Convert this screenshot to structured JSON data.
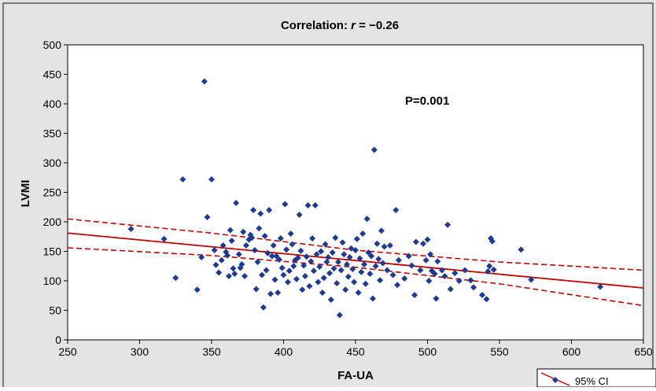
{
  "chart_data": {
    "type": "scatter",
    "title_prefix": "Correlation: ",
    "title_r": "r",
    "title_suffix": " = −0.26",
    "annotation": "P=0.001",
    "xlabel": "FA-UA",
    "ylabel": "LVMI",
    "xlim": [
      250,
      650
    ],
    "ylim": [
      0,
      500
    ],
    "x_ticks": [
      250,
      300,
      350,
      400,
      450,
      500,
      550,
      600,
      650
    ],
    "y_ticks": [
      0,
      50,
      100,
      150,
      200,
      250,
      300,
      350,
      400,
      450,
      500
    ],
    "legend": {
      "label": "95% CI",
      "position": "bottom-right"
    },
    "colors": {
      "points": "#1f3a93",
      "fit_line": "#c00000",
      "background": "#e4e4e4",
      "plot_area": "#ffffff"
    },
    "fit_line": {
      "x": [
        250,
        650
      ],
      "y": [
        181,
        88
      ]
    },
    "ci_upper": {
      "x": [
        250,
        350,
        450,
        550,
        650
      ],
      "y": [
        205,
        181,
        152,
        132,
        118
      ]
    },
    "ci_lower": {
      "x": [
        250,
        350,
        450,
        550,
        650
      ],
      "y": [
        156,
        143,
        123,
        95,
        58
      ]
    },
    "points": [
      {
        "x": 294,
        "y": 188
      },
      {
        "x": 317,
        "y": 171
      },
      {
        "x": 325,
        "y": 105
      },
      {
        "x": 330,
        "y": 272
      },
      {
        "x": 340,
        "y": 85
      },
      {
        "x": 343,
        "y": 140
      },
      {
        "x": 345,
        "y": 438
      },
      {
        "x": 347,
        "y": 208
      },
      {
        "x": 350,
        "y": 272
      },
      {
        "x": 352,
        "y": 152
      },
      {
        "x": 353,
        "y": 127
      },
      {
        "x": 355,
        "y": 114
      },
      {
        "x": 357,
        "y": 135
      },
      {
        "x": 358,
        "y": 160
      },
      {
        "x": 360,
        "y": 149
      },
      {
        "x": 361,
        "y": 143
      },
      {
        "x": 362,
        "y": 108
      },
      {
        "x": 363,
        "y": 186
      },
      {
        "x": 364,
        "y": 168
      },
      {
        "x": 365,
        "y": 121
      },
      {
        "x": 366,
        "y": 112
      },
      {
        "x": 367,
        "y": 232
      },
      {
        "x": 369,
        "y": 145
      },
      {
        "x": 370,
        "y": 122
      },
      {
        "x": 371,
        "y": 128
      },
      {
        "x": 372,
        "y": 183
      },
      {
        "x": 373,
        "y": 108
      },
      {
        "x": 374,
        "y": 160
      },
      {
        "x": 376,
        "y": 170
      },
      {
        "x": 377,
        "y": 178
      },
      {
        "x": 378,
        "y": 173
      },
      {
        "x": 379,
        "y": 220
      },
      {
        "x": 380,
        "y": 152
      },
      {
        "x": 381,
        "y": 86
      },
      {
        "x": 382,
        "y": 132
      },
      {
        "x": 383,
        "y": 189
      },
      {
        "x": 384,
        "y": 214
      },
      {
        "x": 385,
        "y": 110
      },
      {
        "x": 386,
        "y": 55
      },
      {
        "x": 387,
        "y": 176
      },
      {
        "x": 388,
        "y": 118
      },
      {
        "x": 389,
        "y": 147
      },
      {
        "x": 390,
        "y": 220
      },
      {
        "x": 391,
        "y": 78
      },
      {
        "x": 392,
        "y": 142
      },
      {
        "x": 393,
        "y": 160
      },
      {
        "x": 394,
        "y": 102
      },
      {
        "x": 395,
        "y": 142
      },
      {
        "x": 396,
        "y": 80
      },
      {
        "x": 397,
        "y": 136
      },
      {
        "x": 398,
        "y": 172
      },
      {
        "x": 399,
        "y": 122
      },
      {
        "x": 400,
        "y": 110
      },
      {
        "x": 401,
        "y": 230
      },
      {
        "x": 402,
        "y": 153
      },
      {
        "x": 403,
        "y": 98
      },
      {
        "x": 404,
        "y": 117
      },
      {
        "x": 405,
        "y": 180
      },
      {
        "x": 406,
        "y": 162
      },
      {
        "x": 407,
        "y": 125
      },
      {
        "x": 408,
        "y": 135
      },
      {
        "x": 409,
        "y": 103
      },
      {
        "x": 410,
        "y": 139
      },
      {
        "x": 411,
        "y": 212
      },
      {
        "x": 412,
        "y": 151
      },
      {
        "x": 413,
        "y": 85
      },
      {
        "x": 414,
        "y": 126
      },
      {
        "x": 415,
        "y": 108
      },
      {
        "x": 416,
        "y": 141
      },
      {
        "x": 417,
        "y": 228
      },
      {
        "x": 418,
        "y": 91
      },
      {
        "x": 419,
        "y": 133
      },
      {
        "x": 420,
        "y": 172
      },
      {
        "x": 421,
        "y": 117
      },
      {
        "x": 422,
        "y": 228
      },
      {
        "x": 423,
        "y": 145
      },
      {
        "x": 424,
        "y": 98
      },
      {
        "x": 425,
        "y": 124
      },
      {
        "x": 426,
        "y": 150
      },
      {
        "x": 427,
        "y": 80
      },
      {
        "x": 428,
        "y": 105
      },
      {
        "x": 429,
        "y": 162
      },
      {
        "x": 430,
        "y": 132
      },
      {
        "x": 431,
        "y": 140
      },
      {
        "x": 432,
        "y": 113
      },
      {
        "x": 433,
        "y": 68
      },
      {
        "x": 434,
        "y": 148
      },
      {
        "x": 435,
        "y": 121
      },
      {
        "x": 436,
        "y": 173
      },
      {
        "x": 437,
        "y": 96
      },
      {
        "x": 438,
        "y": 132
      },
      {
        "x": 439,
        "y": 42
      },
      {
        "x": 440,
        "y": 118
      },
      {
        "x": 441,
        "y": 165
      },
      {
        "x": 442,
        "y": 145
      },
      {
        "x": 443,
        "y": 85
      },
      {
        "x": 444,
        "y": 128
      },
      {
        "x": 445,
        "y": 107
      },
      {
        "x": 446,
        "y": 140
      },
      {
        "x": 447,
        "y": 155
      },
      {
        "x": 448,
        "y": 120
      },
      {
        "x": 449,
        "y": 98
      },
      {
        "x": 450,
        "y": 152
      },
      {
        "x": 451,
        "y": 171
      },
      {
        "x": 452,
        "y": 80
      },
      {
        "x": 453,
        "y": 138
      },
      {
        "x": 454,
        "y": 115
      },
      {
        "x": 455,
        "y": 180
      },
      {
        "x": 456,
        "y": 128
      },
      {
        "x": 457,
        "y": 95
      },
      {
        "x": 458,
        "y": 205
      },
      {
        "x": 459,
        "y": 148
      },
      {
        "x": 460,
        "y": 112
      },
      {
        "x": 461,
        "y": 142
      },
      {
        "x": 462,
        "y": 70
      },
      {
        "x": 463,
        "y": 322
      },
      {
        "x": 464,
        "y": 125
      },
      {
        "x": 465,
        "y": 163
      },
      {
        "x": 466,
        "y": 137
      },
      {
        "x": 467,
        "y": 101
      },
      {
        "x": 468,
        "y": 185
      },
      {
        "x": 469,
        "y": 130
      },
      {
        "x": 470,
        "y": 158
      },
      {
        "x": 472,
        "y": 118
      },
      {
        "x": 474,
        "y": 160
      },
      {
        "x": 476,
        "y": 110
      },
      {
        "x": 478,
        "y": 220
      },
      {
        "x": 479,
        "y": 93
      },
      {
        "x": 480,
        "y": 135
      },
      {
        "x": 484,
        "y": 104
      },
      {
        "x": 487,
        "y": 142
      },
      {
        "x": 489,
        "y": 126
      },
      {
        "x": 491,
        "y": 76
      },
      {
        "x": 492,
        "y": 166
      },
      {
        "x": 495,
        "y": 118
      },
      {
        "x": 497,
        "y": 163
      },
      {
        "x": 499,
        "y": 135
      },
      {
        "x": 500,
        "y": 170
      },
      {
        "x": 501,
        "y": 100
      },
      {
        "x": 502,
        "y": 145
      },
      {
        "x": 503,
        "y": 117
      },
      {
        "x": 505,
        "y": 112
      },
      {
        "x": 506,
        "y": 70
      },
      {
        "x": 507,
        "y": 133
      },
      {
        "x": 510,
        "y": 118
      },
      {
        "x": 512,
        "y": 108
      },
      {
        "x": 514,
        "y": 195
      },
      {
        "x": 516,
        "y": 86
      },
      {
        "x": 519,
        "y": 113
      },
      {
        "x": 522,
        "y": 100
      },
      {
        "x": 526,
        "y": 118
      },
      {
        "x": 530,
        "y": 101
      },
      {
        "x": 532,
        "y": 89
      },
      {
        "x": 538,
        "y": 76
      },
      {
        "x": 541,
        "y": 69
      },
      {
        "x": 542,
        "y": 116
      },
      {
        "x": 543,
        "y": 125
      },
      {
        "x": 544,
        "y": 172
      },
      {
        "x": 545,
        "y": 167
      },
      {
        "x": 546,
        "y": 119
      },
      {
        "x": 565,
        "y": 153
      },
      {
        "x": 572,
        "y": 102
      },
      {
        "x": 620,
        "y": 90
      }
    ]
  }
}
